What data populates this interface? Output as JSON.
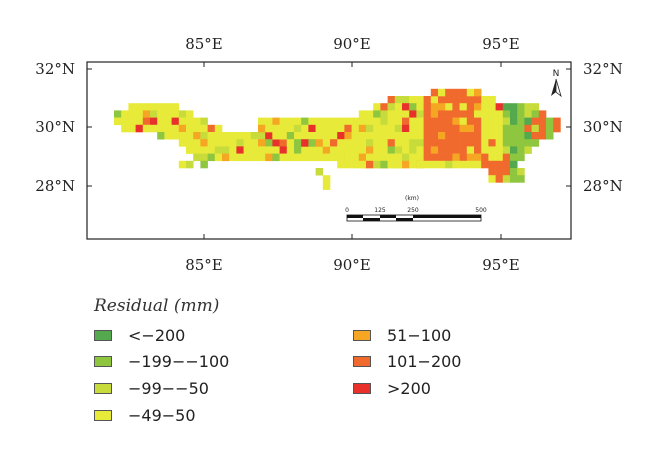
{
  "map": {
    "lon_ticks": [
      "85°E",
      "90°E",
      "95°E"
    ],
    "lat_ticks": [
      "32°N",
      "30°N",
      "28°N"
    ],
    "north_label": "N",
    "scale_bar": {
      "unit_label": "(km)",
      "ticks": [
        "0",
        "125",
        "250",
        "500"
      ]
    }
  },
  "legend": {
    "title": "Residual (mm)",
    "items": [
      {
        "label": "<−200",
        "color": "#54a84e"
      },
      {
        "label": "−199−−100",
        "color": "#8ec63f"
      },
      {
        "label": "−99−−50",
        "color": "#c7dc3a"
      },
      {
        "label": "−49−50",
        "color": "#e8ea3a"
      },
      {
        "label": "51−100",
        "color": "#f5a623"
      },
      {
        "label": "101−200",
        "color": "#ef6a2c"
      },
      {
        "label": ">200",
        "color": "#e8312b"
      }
    ]
  }
}
